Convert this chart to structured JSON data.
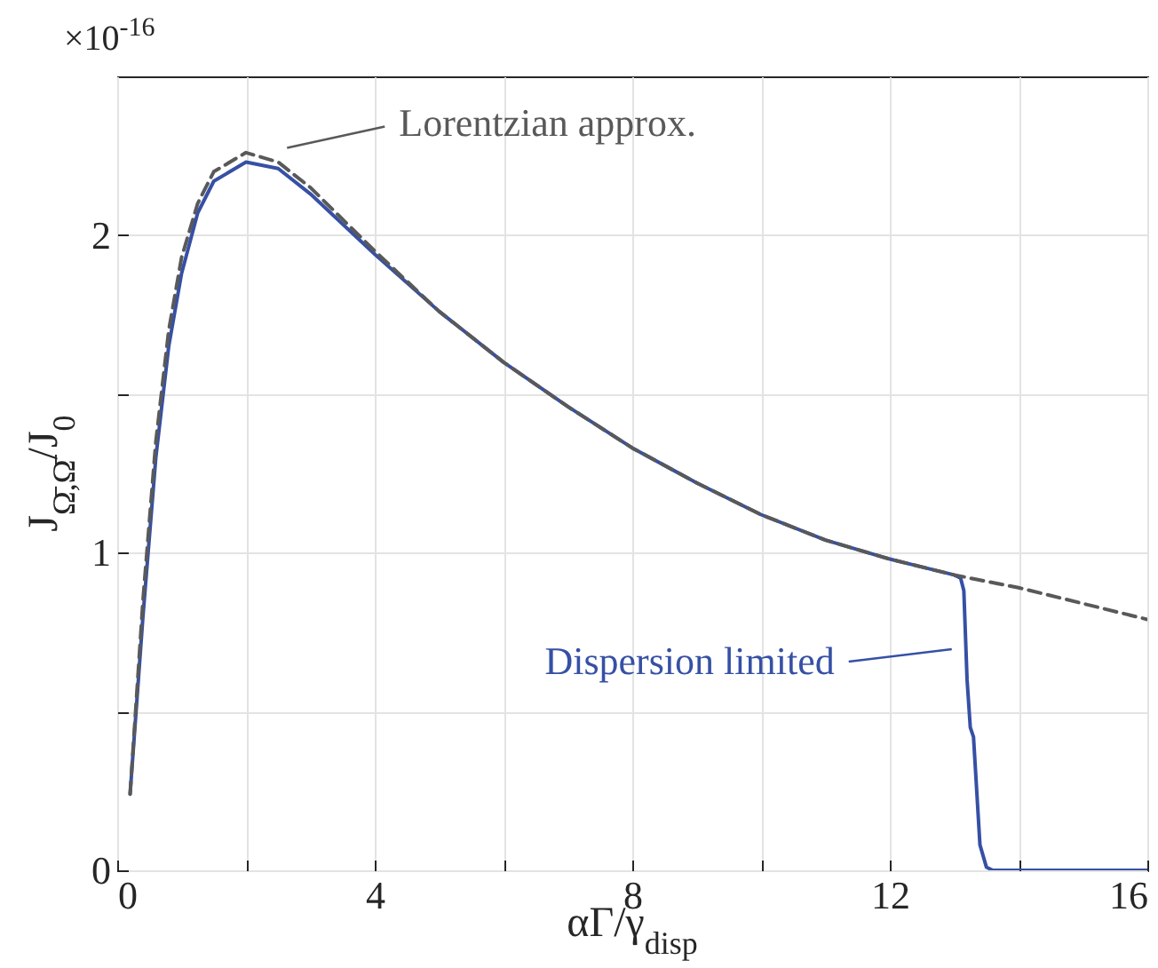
{
  "chart_data": {
    "type": "line",
    "xlabel": "αΓ/γ$_{disp}$",
    "ylabel": "J$_{Ω̄,Ω̄}$/J$_{0}$",
    "xlim": [
      0,
      16
    ],
    "ylim": [
      0,
      2.5
    ],
    "xticks": [
      0,
      {
        "value": 2,
        "label": null
      },
      4,
      {
        "value": 6,
        "label": null
      },
      8,
      {
        "value": 10,
        "label": null
      },
      12,
      {
        "value": 14,
        "label": null
      },
      16
    ],
    "yticks": [
      0,
      {
        "value": 0.5,
        "label": null
      },
      1,
      {
        "value": 1.5,
        "label": null
      },
      2
    ],
    "grid": true,
    "series": [
      {
        "name": "Dispersion limited",
        "color": "#3650a5",
        "line_style": "solid",
        "x": [
          0.2,
          0.4,
          0.6,
          0.8,
          1.0,
          1.25,
          1.5,
          2.0,
          2.5,
          3.0,
          4.0,
          5.0,
          6.0,
          7.0,
          8.0,
          9.0,
          10.0,
          11.0,
          12.0,
          13.0,
          13.1,
          13.15,
          13.2,
          13.25,
          13.3,
          13.35,
          13.4,
          13.5,
          13.6,
          14.0,
          16.0
        ],
        "values": [
          0.24,
          0.8,
          1.3,
          1.65,
          1.88,
          2.07,
          2.17,
          2.23,
          2.21,
          2.13,
          1.94,
          1.76,
          1.6,
          1.46,
          1.33,
          1.22,
          1.12,
          1.04,
          0.98,
          0.93,
          0.92,
          0.88,
          0.6,
          0.45,
          0.42,
          0.25,
          0.08,
          0.01,
          0,
          0,
          0
        ]
      },
      {
        "name": "Lorentzian approx.",
        "color": "#595959",
        "line_style": "dashed",
        "x": [
          0.2,
          0.4,
          0.6,
          0.8,
          1.0,
          1.25,
          1.5,
          2.0,
          2.5,
          3.0,
          4.0,
          5.0,
          6.0,
          7.0,
          8.0,
          9.0,
          10.0,
          11.0,
          12.0,
          13.0,
          14.0,
          15.0,
          16.0
        ],
        "values": [
          0.24,
          0.85,
          1.35,
          1.7,
          1.93,
          2.1,
          2.2,
          2.26,
          2.23,
          2.15,
          1.95,
          1.76,
          1.6,
          1.46,
          1.33,
          1.22,
          1.12,
          1.04,
          0.98,
          0.93,
          0.89,
          0.84,
          0.79
        ]
      }
    ],
    "annotations": [
      "×10$^{-16}$"
    ]
  }
}
